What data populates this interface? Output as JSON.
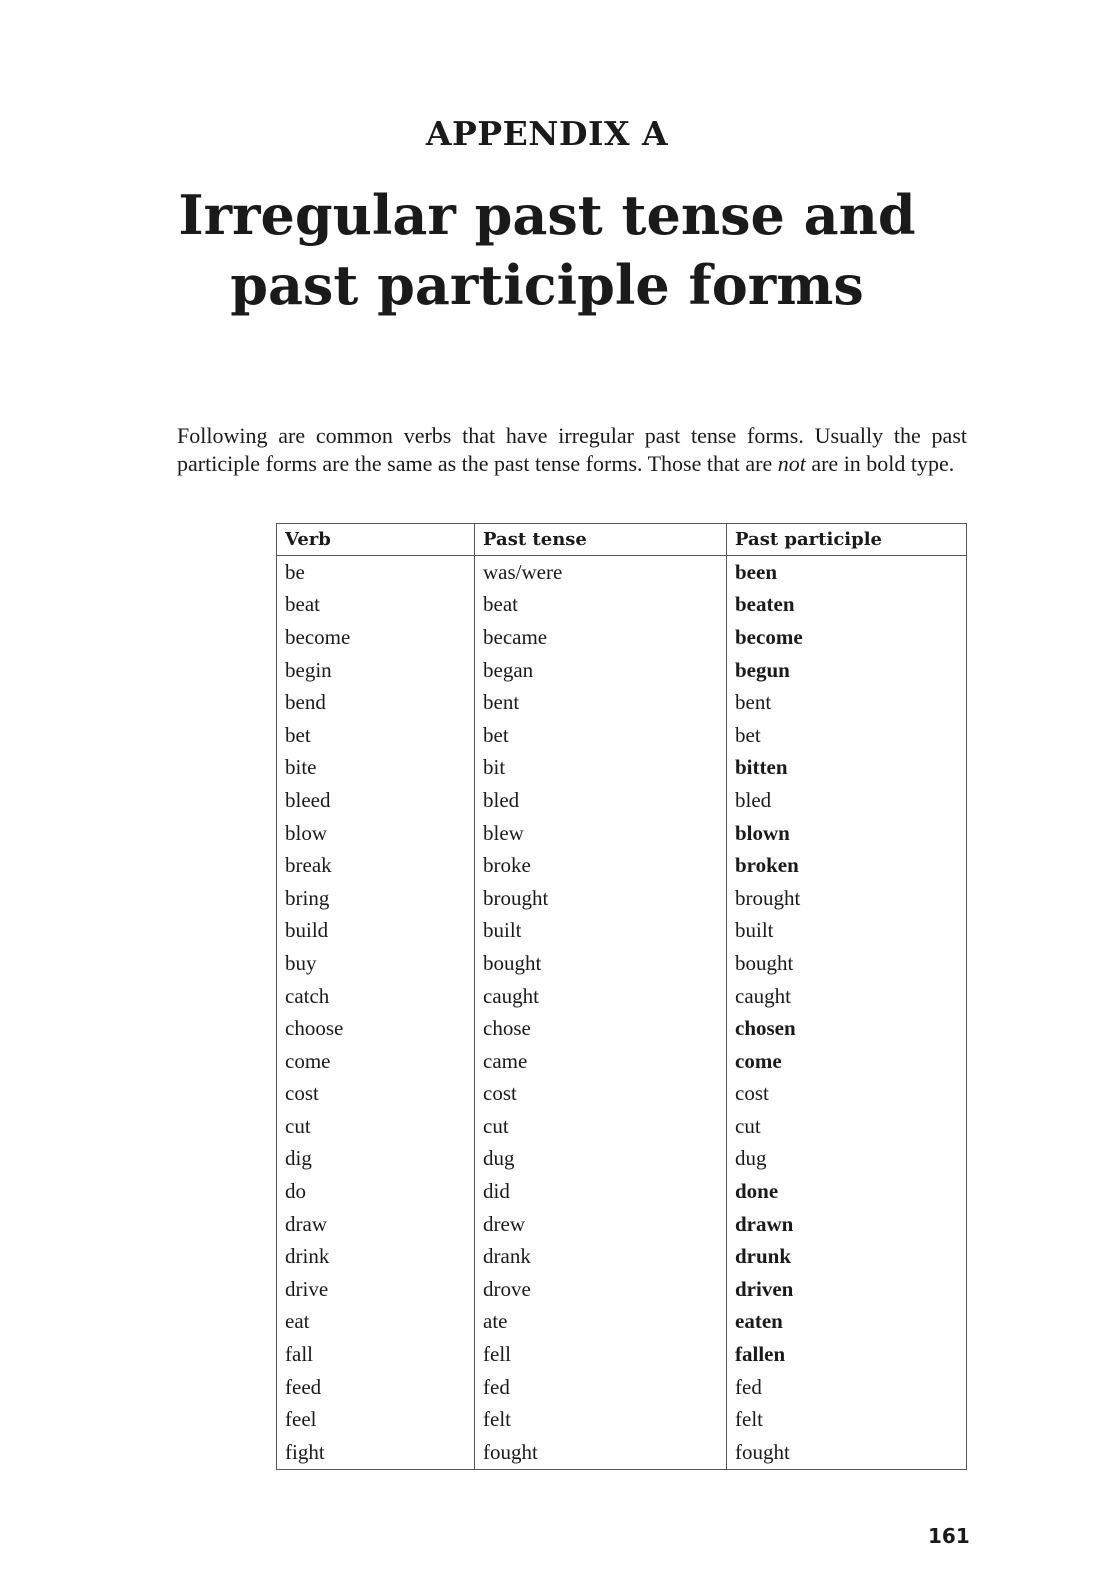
{
  "header": {
    "appendix": "APPENDIX A",
    "title_line1": "Irregular past tense and",
    "title_line2": "past participle forms"
  },
  "intro": {
    "part1": "Following are common verbs that have irregular past tense forms. Usually the past participle forms are the same as the past tense forms. Those that are ",
    "italic": "not",
    "part2": " are in bold type."
  },
  "table": {
    "headers": [
      "Verb",
      "Past tense",
      "Past participle"
    ],
    "rows": [
      {
        "verb": "be",
        "past": "was/were",
        "participle": "been",
        "bold": true
      },
      {
        "verb": "beat",
        "past": "beat",
        "participle": "beaten",
        "bold": true
      },
      {
        "verb": "become",
        "past": "became",
        "participle": "become",
        "bold": true
      },
      {
        "verb": "begin",
        "past": "began",
        "participle": "begun",
        "bold": true
      },
      {
        "verb": "bend",
        "past": "bent",
        "participle": "bent",
        "bold": false
      },
      {
        "verb": "bet",
        "past": "bet",
        "participle": "bet",
        "bold": false
      },
      {
        "verb": "bite",
        "past": "bit",
        "participle": "bitten",
        "bold": true
      },
      {
        "verb": "bleed",
        "past": "bled",
        "participle": "bled",
        "bold": false
      },
      {
        "verb": "blow",
        "past": "blew",
        "participle": "blown",
        "bold": true
      },
      {
        "verb": "break",
        "past": "broke",
        "participle": "broken",
        "bold": true
      },
      {
        "verb": "bring",
        "past": "brought",
        "participle": "brought",
        "bold": false
      },
      {
        "verb": "build",
        "past": "built",
        "participle": "built",
        "bold": false
      },
      {
        "verb": "buy",
        "past": "bought",
        "participle": "bought",
        "bold": false
      },
      {
        "verb": "catch",
        "past": "caught",
        "participle": "caught",
        "bold": false
      },
      {
        "verb": "choose",
        "past": "chose",
        "participle": "chosen",
        "bold": true
      },
      {
        "verb": "come",
        "past": "came",
        "participle": "come",
        "bold": true
      },
      {
        "verb": "cost",
        "past": "cost",
        "participle": "cost",
        "bold": false
      },
      {
        "verb": "cut",
        "past": "cut",
        "participle": "cut",
        "bold": false
      },
      {
        "verb": "dig",
        "past": "dug",
        "participle": "dug",
        "bold": false
      },
      {
        "verb": "do",
        "past": "did",
        "participle": "done",
        "bold": true
      },
      {
        "verb": "draw",
        "past": "drew",
        "participle": "drawn",
        "bold": true
      },
      {
        "verb": "drink",
        "past": "drank",
        "participle": "drunk",
        "bold": true
      },
      {
        "verb": "drive",
        "past": "drove",
        "participle": "driven",
        "bold": true
      },
      {
        "verb": "eat",
        "past": "ate",
        "participle": "eaten",
        "bold": true
      },
      {
        "verb": "fall",
        "past": "fell",
        "participle": "fallen",
        "bold": true
      },
      {
        "verb": "feed",
        "past": "fed",
        "participle": "fed",
        "bold": false
      },
      {
        "verb": "feel",
        "past": "felt",
        "participle": "felt",
        "bold": false
      },
      {
        "verb": "fight",
        "past": "fought",
        "participle": "fought",
        "bold": false
      }
    ]
  },
  "footer": {
    "page_number": "161"
  }
}
